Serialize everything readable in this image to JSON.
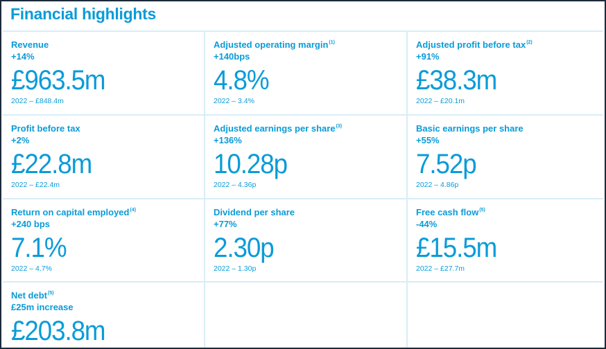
{
  "title": "Financial highlights",
  "metrics": [
    {
      "label": "Revenue",
      "note": "",
      "change": "+14%",
      "value": "£963.5m",
      "prior": "2022 – £848.4m"
    },
    {
      "label": "Adjusted operating margin",
      "note": "(1)",
      "change": "+140bps",
      "value": "4.8%",
      "prior": "2022 – 3.4%"
    },
    {
      "label": "Adjusted profit before tax",
      "note": "(2)",
      "change": "+91%",
      "value": "£38.3m",
      "prior": "2022 – £20.1m"
    },
    {
      "label": "Profit before tax",
      "note": "",
      "change": "+2%",
      "value": "£22.8m",
      "prior": "2022 – £22.4m"
    },
    {
      "label": "Adjusted earnings per share",
      "note": "(3)",
      "change": "+136%",
      "value": "10.28p",
      "prior": "2022 – 4.36p"
    },
    {
      "label": "Basic earnings per share",
      "note": "",
      "change": "+55%",
      "value": "7.52p",
      "prior": "2022 – 4.86p"
    },
    {
      "label": "Return on capital employed",
      "note": "(4)",
      "change": "+240 bps",
      "value": "7.1%",
      "prior": "2022 – 4.7%"
    },
    {
      "label": "Dividend per share",
      "note": "",
      "change": "+77%",
      "value": "2.30p",
      "prior": "2022 – 1.30p"
    },
    {
      "label": "Free cash flow",
      "note": "(5)",
      "change": "-44%",
      "value": "£15.5m",
      "prior": "2022 – £27.7m"
    },
    {
      "label": "Net debt",
      "note": "(5)",
      "change": "£25m increase",
      "value": "£203.8m",
      "prior": ""
    }
  ],
  "colors": {
    "accent": "#0a9bd8",
    "divider": "#d8edf8",
    "border": "#1b2a3a"
  }
}
